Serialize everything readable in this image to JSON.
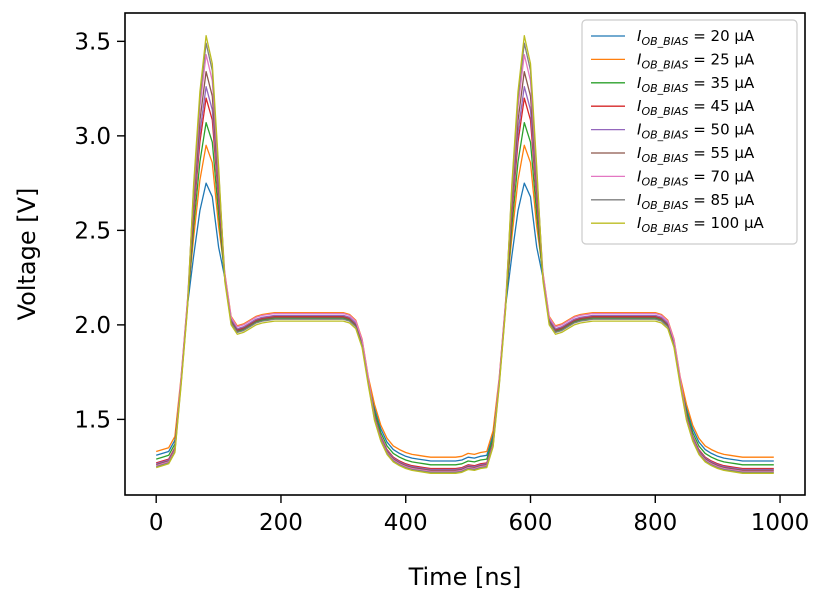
{
  "chart_data": {
    "type": "line",
    "title": "",
    "xlabel": "Time [ns]",
    "ylabel": "Voltage [V]",
    "xlim": [
      -50,
      1040
    ],
    "ylim": [
      1.1,
      3.65
    ],
    "xticks": [
      0,
      200,
      400,
      600,
      800,
      1000
    ],
    "xtick_labels": [
      "0",
      "200",
      "400",
      "600",
      "800",
      "1000"
    ],
    "yticks": [
      1.5,
      2.0,
      2.5,
      3.0,
      3.5
    ],
    "ytick_labels": [
      "1.5",
      "2.0",
      "2.5",
      "3.0",
      "3.5"
    ],
    "grid": false,
    "legend_position": "top-right",
    "x": [
      0,
      10,
      20,
      30,
      40,
      50,
      60,
      70,
      80,
      90,
      100,
      110,
      120,
      130,
      140,
      150,
      160,
      170,
      180,
      190,
      200,
      210,
      220,
      230,
      240,
      250,
      260,
      270,
      280,
      290,
      300,
      310,
      320,
      330,
      340,
      350,
      360,
      370,
      380,
      390,
      400,
      410,
      420,
      430,
      440,
      450,
      460,
      470,
      480,
      490,
      500,
      510,
      520,
      530,
      540,
      550,
      560,
      570,
      580,
      590,
      600,
      610,
      620,
      630,
      640,
      650,
      660,
      670,
      680,
      690,
      700,
      710,
      720,
      730,
      740,
      750,
      760,
      770,
      780,
      790,
      800,
      810,
      820,
      830,
      840,
      850,
      860,
      870,
      880,
      890,
      900,
      910,
      920,
      930,
      940,
      950,
      960,
      970,
      980,
      990
    ],
    "series": [
      {
        "name": "20 μA",
        "label_pre": "I",
        "label_sub": "OB_BIAS",
        "label_post": " = 20 μA",
        "color": "#1f77b4",
        "peak": 2.75
      },
      {
        "name": "25 μA",
        "label_pre": "I",
        "label_sub": "OB_BIAS",
        "label_post": " = 25 μA",
        "color": "#ff7f0e",
        "peak": 2.95
      },
      {
        "name": "35 μA",
        "label_pre": "I",
        "label_sub": "OB_BIAS",
        "label_post": " = 35 μA",
        "color": "#2ca02c",
        "peak": 3.07
      },
      {
        "name": "45 μA",
        "label_pre": "I",
        "label_sub": "OB_BIAS",
        "label_post": " = 45 μA",
        "color": "#d62728",
        "peak": 3.2
      },
      {
        "name": "50 μA",
        "label_pre": "I",
        "label_sub": "OB_BIAS",
        "label_post": " = 50 μA",
        "color": "#9467bd",
        "peak": 3.26
      },
      {
        "name": "55 μA",
        "label_pre": "I",
        "label_sub": "OB_BIAS",
        "label_post": " = 55 μA",
        "color": "#8c564b",
        "peak": 3.34
      },
      {
        "name": "70 μA",
        "label_pre": "I",
        "label_sub": "OB_BIAS",
        "label_post": " = 70 μA",
        "color": "#e377c2",
        "peak": 3.43
      },
      {
        "name": "85 μA",
        "label_pre": "I",
        "label_sub": "OB_BIAS",
        "label_post": " = 85 μA",
        "color": "#7f7f7f",
        "peak": 3.49
      },
      {
        "name": "100 μA",
        "label_pre": "I",
        "label_sub": "OB_BIAS",
        "label_post": " = 100 μA",
        "color": "#bcbd22",
        "peak": 3.53
      }
    ]
  }
}
